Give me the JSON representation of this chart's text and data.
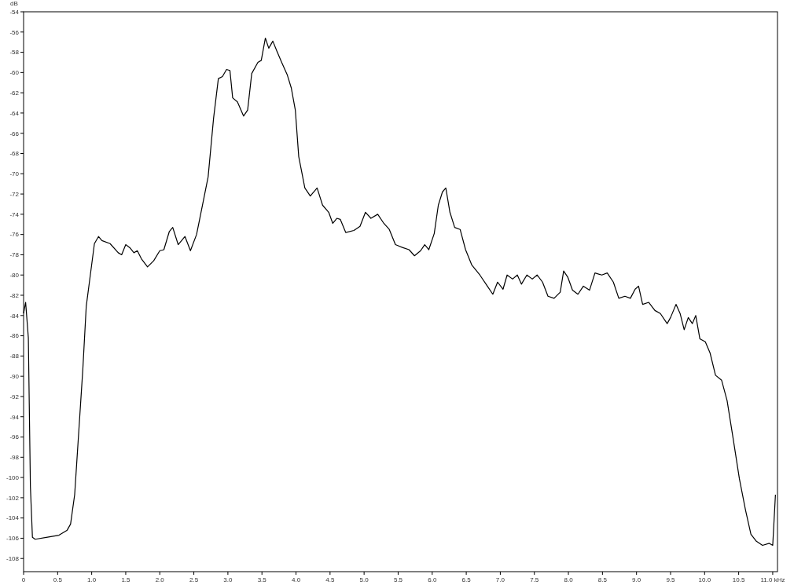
{
  "chart_data": {
    "type": "line",
    "ylabel": "dB",
    "xlim": [
      0,
      11.07
    ],
    "ylim": [
      -109.3,
      -54
    ],
    "xticks": [
      0,
      0.5,
      {
        "value": 1,
        "label": "1.0"
      },
      1.5,
      {
        "value": 2,
        "label": "2.0"
      },
      2.5,
      {
        "value": 3,
        "label": "3.0"
      },
      3.5,
      {
        "value": 4,
        "label": "4.0"
      },
      4.5,
      {
        "value": 5,
        "label": "5.0"
      },
      5.5,
      {
        "value": 6,
        "label": "6.0"
      },
      6.5,
      {
        "value": 7,
        "label": "7.0"
      },
      7.5,
      {
        "value": 8,
        "label": "8.0"
      },
      8.5,
      {
        "value": 9,
        "label": "9.0"
      },
      9.5,
      {
        "value": 10,
        "label": "10.0"
      },
      10.5,
      {
        "value": 11,
        "label": "11.0 kHz"
      }
    ],
    "yticks": [
      -54,
      -56,
      -58,
      -60,
      -62,
      -64,
      -66,
      -68,
      -70,
      -72,
      -74,
      -76,
      -78,
      -80,
      -82,
      -84,
      -86,
      -88,
      -90,
      -92,
      -94,
      -96,
      -98,
      -100,
      -102,
      -104,
      -106,
      -108
    ],
    "grid": false,
    "marker": "none",
    "line_style": "solid",
    "series": [
      {
        "color": "#000000",
        "x": [
          0,
          0.03,
          0.07,
          0.1,
          0.13,
          0.17,
          0.35,
          0.52,
          0.64,
          0.69,
          0.75,
          0.81,
          0.87,
          0.92,
          0.98,
          1.04,
          1.1,
          1.15,
          1.27,
          1.39,
          1.44,
          1.5,
          1.56,
          1.62,
          1.67,
          1.73,
          1.82,
          1.91,
          2.0,
          2.06,
          2.14,
          2.19,
          2.27,
          2.37,
          2.45,
          2.54,
          2.63,
          2.71,
          2.79,
          2.86,
          2.92,
          2.98,
          3.03,
          3.07,
          3.14,
          3.23,
          3.29,
          3.35,
          3.44,
          3.49,
          3.55,
          3.6,
          3.66,
          3.72,
          3.79,
          3.87,
          3.93,
          3.99,
          4.04,
          4.13,
          4.21,
          4.31,
          4.39,
          4.48,
          4.54,
          4.6,
          4.65,
          4.73,
          4.85,
          4.94,
          5.02,
          5.1,
          5.2,
          5.29,
          5.37,
          5.46,
          5.57,
          5.66,
          5.74,
          5.83,
          5.89,
          5.95,
          6.03,
          6.09,
          6.15,
          6.2,
          6.26,
          6.33,
          6.41,
          6.49,
          6.58,
          6.7,
          6.81,
          6.89,
          6.96,
          7.04,
          7.1,
          7.18,
          7.25,
          7.31,
          7.39,
          7.47,
          7.54,
          7.62,
          7.7,
          7.79,
          7.88,
          7.93,
          7.99,
          8.06,
          8.14,
          8.22,
          8.31,
          8.39,
          8.49,
          8.57,
          8.66,
          8.74,
          8.83,
          8.91,
          8.98,
          9.03,
          9.09,
          9.18,
          9.27,
          9.35,
          9.45,
          9.5,
          9.58,
          9.64,
          9.7,
          9.76,
          9.82,
          9.87,
          9.93,
          10.01,
          10.08,
          10.16,
          10.25,
          10.33,
          10.42,
          10.51,
          10.6,
          10.68,
          10.76,
          10.85,
          10.95,
          11.0,
          11.04
        ],
        "values": [
          -83.8,
          -82.7,
          -86.2,
          -100.9,
          -105.9,
          -106.1,
          -105.9,
          -105.7,
          -105.2,
          -104.6,
          -101.7,
          -95.5,
          -89.3,
          -83.1,
          -80.0,
          -76.9,
          -76.2,
          -76.6,
          -76.9,
          -77.8,
          -78.0,
          -77.0,
          -77.3,
          -77.8,
          -77.6,
          -78.4,
          -79.2,
          -78.6,
          -77.6,
          -77.5,
          -75.7,
          -75.3,
          -77.0,
          -76.2,
          -77.6,
          -76.0,
          -73.0,
          -70.3,
          -64.5,
          -60.6,
          -60.4,
          -59.7,
          -59.8,
          -62.5,
          -62.9,
          -64.3,
          -63.7,
          -60.1,
          -59.0,
          -58.8,
          -56.6,
          -57.6,
          -56.9,
          -57.9,
          -59.0,
          -60.2,
          -61.5,
          -63.7,
          -68.3,
          -71.4,
          -72.2,
          -71.4,
          -73.1,
          -73.8,
          -74.9,
          -74.4,
          -74.5,
          -75.8,
          -75.6,
          -75.2,
          -73.8,
          -74.4,
          -74.0,
          -74.9,
          -75.5,
          -77.0,
          -77.3,
          -77.5,
          -78.1,
          -77.6,
          -77.0,
          -77.5,
          -75.9,
          -73.1,
          -71.8,
          -71.4,
          -73.8,
          -75.3,
          -75.5,
          -77.5,
          -79.0,
          -80.0,
          -81.1,
          -81.9,
          -80.7,
          -81.4,
          -80.0,
          -80.4,
          -80.0,
          -80.9,
          -80.0,
          -80.4,
          -80.0,
          -80.7,
          -82.1,
          -82.3,
          -81.7,
          -79.6,
          -80.2,
          -81.5,
          -81.9,
          -81.1,
          -81.5,
          -79.8,
          -80.0,
          -79.8,
          -80.7,
          -82.3,
          -82.1,
          -82.3,
          -81.4,
          -81.1,
          -82.9,
          -82.7,
          -83.5,
          -83.8,
          -84.8,
          -84.2,
          -82.9,
          -83.8,
          -85.4,
          -84.2,
          -84.8,
          -84.0,
          -86.3,
          -86.6,
          -87.7,
          -89.9,
          -90.4,
          -92.4,
          -96.2,
          -100.1,
          -103.2,
          -105.6,
          -106.3,
          -106.7,
          -106.5,
          -106.7,
          -101.7
        ]
      }
    ]
  }
}
